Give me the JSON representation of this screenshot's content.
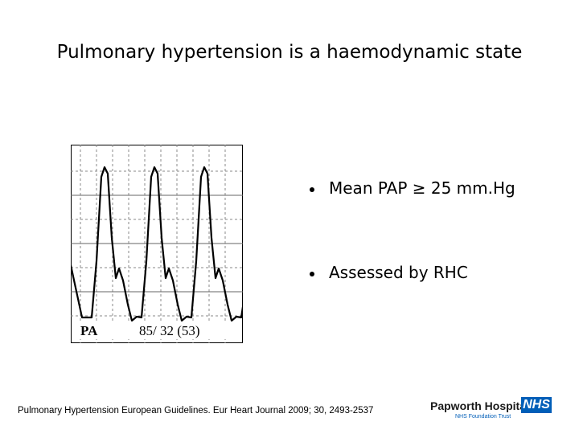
{
  "title": "Pulmonary hypertension is a haemodynamic state",
  "figure": {
    "label": "PA",
    "pressures": "85/ 32 (53)"
  },
  "bullets": [
    "Mean PAP ≥ 25 mm.Hg",
    "Assessed by RHC"
  ],
  "citation": "Pulmonary Hypertension European Guidelines. Eur Heart Journal 2009; 30, 2493-2537",
  "logo": {
    "name": "Papworth Hospital",
    "badge": "NHS",
    "subtitle": "NHS Foundation Trust"
  }
}
